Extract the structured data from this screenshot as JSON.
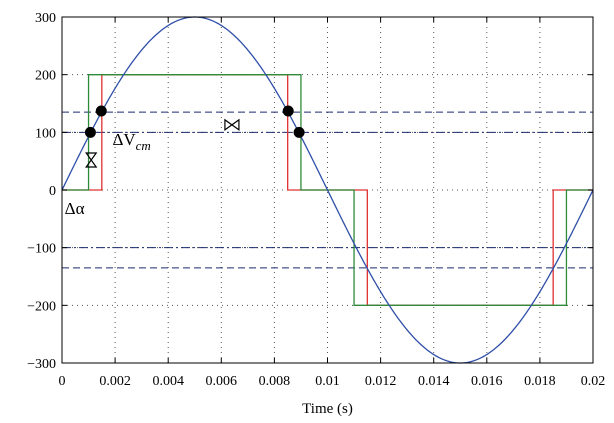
{
  "chart_data": {
    "type": "line",
    "title": "",
    "xlabel": "Time (s)",
    "ylabel": "",
    "xlim": [
      0,
      0.02
    ],
    "ylim": [
      -300,
      300
    ],
    "x_ticks": [
      0,
      0.002,
      0.004,
      0.006,
      0.008,
      0.01,
      0.012,
      0.014,
      0.016,
      0.018,
      0.02
    ],
    "x_tick_labels": [
      "0",
      "0.002",
      "0.004",
      "0.006",
      "0.008",
      "0.01",
      "0.012",
      "0.014",
      "0.016",
      "0.018",
      "0.02"
    ],
    "y_ticks": [
      -300,
      -200,
      -100,
      0,
      100,
      200,
      300
    ],
    "y_tick_labels": [
      "−300",
      "−200",
      "−100",
      "0",
      "100",
      "200",
      "300"
    ],
    "grid": true,
    "series": [
      {
        "color": "#2f4fa8",
        "kind": "sine",
        "amplitude": 300,
        "frequency_hz": 50
      },
      {
        "color": "#e03030",
        "kind": "step",
        "points": [
          [
            0,
            0
          ],
          [
            0.0015,
            0
          ],
          [
            0.0015,
            200
          ],
          [
            0.0085,
            200
          ],
          [
            0.0085,
            0
          ],
          [
            0.0115,
            0
          ],
          [
            0.0115,
            -200
          ],
          [
            0.0185,
            -200
          ],
          [
            0.0185,
            0
          ],
          [
            0.02,
            0
          ]
        ]
      },
      {
        "color": "#2e8b3a",
        "kind": "step",
        "points": [
          [
            0,
            0
          ],
          [
            0.001,
            0
          ],
          [
            0.001,
            200
          ],
          [
            0.009,
            200
          ],
          [
            0.009,
            0
          ],
          [
            0.011,
            0
          ],
          [
            0.011,
            -200
          ],
          [
            0.019,
            -200
          ],
          [
            0.019,
            0
          ],
          [
            0.02,
            0
          ]
        ]
      }
    ],
    "reference_lines": [
      {
        "y": 135,
        "style": "dashed",
        "color": "#1a2a6e"
      },
      {
        "y": 100,
        "style": "dash-dot",
        "color": "#1a2a6e"
      },
      {
        "y": -100,
        "style": "dash-dot",
        "color": "#1a2a6e"
      },
      {
        "y": -135,
        "style": "dashed",
        "color": "#1a2a6e"
      }
    ],
    "markers": [
      {
        "x": 0.00107,
        "y": 100
      },
      {
        "x": 0.00148,
        "y": 137
      },
      {
        "x": 0.00852,
        "y": 137
      },
      {
        "x": 0.00893,
        "y": 100
      }
    ],
    "arrow_markers": [
      {
        "x": 0.0011,
        "y": 52,
        "orientation": "vertical"
      },
      {
        "x": 0.0064,
        "y": 113,
        "orientation": "horizontal"
      }
    ],
    "annotations": {
      "delta_vcm": {
        "prefix": "ΔV",
        "subscript": "cm",
        "x": 0.0019,
        "y": 78
      },
      "delta_alpha": {
        "text": "Δα",
        "x": 0.0001,
        "y": -42
      }
    }
  }
}
